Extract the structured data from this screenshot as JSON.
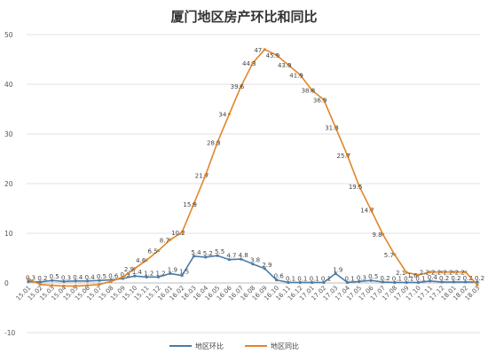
{
  "chart_data": {
    "type": "line",
    "title": "厦门地区房产环比和同比",
    "ylim": [
      -10,
      50
    ],
    "yticks": [
      -10,
      0,
      10,
      20,
      30,
      40,
      50
    ],
    "grid": true,
    "legend_position": "bottom",
    "colors": {
      "mom": "#4a7ba6",
      "yoy": "#e0852a"
    },
    "xtick_labels": [
      "15.01",
      "15.02",
      "15.03",
      "15.04",
      "15.05",
      "15.06",
      "15.07",
      "15.08",
      "15.09",
      "15.10",
      "15.11",
      "15.12",
      "16.01",
      "16.02",
      "16.03",
      "16.04",
      "16.05",
      "16.06",
      "16.07",
      "16.08",
      "16.09",
      "16.10",
      "16.11",
      "16.12",
      "17.01",
      "17.02",
      "17.03",
      "17.04",
      "17.05",
      "17.06",
      "17.07",
      "17.08",
      "17.09",
      "17.10",
      "17.11",
      "17.12",
      "18.01",
      "18.02",
      "18.03"
    ],
    "series": [
      {
        "name": "地区环比",
        "values": [
          0.3,
          0.2,
          0.5,
          0.3,
          0.4,
          0.4,
          0.5,
          0.6,
          0.9,
          1.4,
          1.2,
          1.2,
          1.9,
          1.5,
          5.4,
          5.2,
          5.5,
          4.7,
          4.8,
          3.8,
          2.9,
          0.6,
          0.1,
          0.1,
          0.1,
          0.1,
          1.9,
          0.1,
          0.3,
          0.5,
          0.2,
          0.1,
          0.1,
          0.1,
          0.4,
          0.2,
          0.2,
          0.2,
          0.2
        ],
        "labels": [
          "0.3",
          "0.2",
          "0.5",
          "0.3",
          "0.4",
          "0.4",
          "0.5",
          "0.6",
          "0.9",
          "1.4",
          "1.2",
          "1.2",
          "1.9",
          "1.5",
          "5.4",
          "5.2",
          "5.5",
          "4.7",
          "4.8",
          "3.8",
          "2.9",
          "0.6",
          "0.1",
          "0.1",
          "0.1",
          "0.1",
          "1.9",
          "0.1",
          "0.3",
          "0.5",
          "0.2",
          "0.1",
          "0.1",
          "0.1",
          "0.4",
          "0.2",
          "0.2",
          "0.2",
          "0.2"
        ]
      },
      {
        "name": "地区同比",
        "values": [
          0.8,
          -0.3,
          -0.5,
          -0.6,
          -0.6,
          -0.5,
          -0.3,
          0.3,
          1.2,
          2.9,
          4.6,
          6.5,
          8.7,
          10.2,
          15.9,
          21.7,
          28.3,
          34,
          39.6,
          44.3,
          47,
          45.9,
          43.9,
          41.9,
          38.8,
          36.9,
          31.3,
          25.7,
          19.5,
          14.7,
          9.8,
          5.7,
          2.1,
          1.6,
          2.2,
          2.2,
          2.2,
          2.2,
          -0.4
        ],
        "labels": [
          "",
          "",
          "",
          "",
          "",
          "",
          "",
          "",
          "",
          "2.9",
          "4.6",
          "6.5",
          "8.7",
          "10.2",
          "15.9",
          "21.7",
          "28.3",
          "34",
          "39.6",
          "44.3",
          "47",
          "45.9",
          "43.9",
          "41.9",
          "38.8",
          "36.9",
          "31.3",
          "25.7",
          "19.5",
          "14.7",
          "9.8",
          "5.7",
          "2.1",
          "1.6",
          "2.2",
          "2.2",
          "2.2",
          "2.2",
          ""
        ]
      }
    ]
  }
}
